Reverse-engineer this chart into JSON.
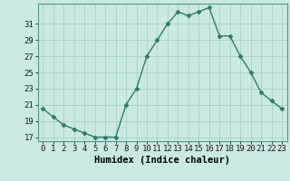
{
  "x": [
    0,
    1,
    2,
    3,
    4,
    5,
    6,
    7,
    8,
    9,
    10,
    11,
    12,
    13,
    14,
    15,
    16,
    17,
    18,
    19,
    20,
    21,
    22,
    23
  ],
  "y": [
    20.5,
    19.5,
    18.5,
    18.0,
    17.5,
    17.0,
    17.0,
    17.0,
    21.0,
    23.0,
    27.0,
    29.0,
    31.0,
    32.5,
    32.0,
    32.5,
    33.0,
    29.5,
    29.5,
    27.0,
    25.0,
    22.5,
    21.5,
    20.5
  ],
  "line_color": "#2d7a6a",
  "marker": "D",
  "marker_size": 2.5,
  "bg_color": "#cce8e4",
  "grid_color": "#a8cfc9",
  "xlabel": "Humidex (Indice chaleur)",
  "xlim": [
    -0.5,
    23.5
  ],
  "ylim": [
    16.5,
    33.5
  ],
  "yticks": [
    17,
    19,
    21,
    23,
    25,
    27,
    29,
    31
  ],
  "xticks": [
    0,
    1,
    2,
    3,
    4,
    5,
    6,
    7,
    8,
    9,
    10,
    11,
    12,
    13,
    14,
    15,
    16,
    17,
    18,
    19,
    20,
    21,
    22,
    23
  ],
  "tick_label_size": 6.5,
  "xlabel_size": 7.5,
  "spine_color": "#4a9a8a"
}
